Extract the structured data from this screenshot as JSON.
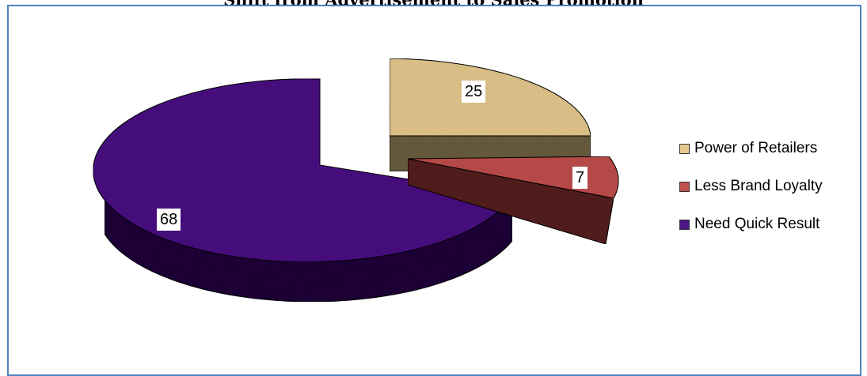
{
  "chart_data": {
    "type": "pie",
    "title": "Shift from Advertisement to Sales Promotion",
    "categories": [
      "Power of Retailers",
      "Less Brand Loyalty",
      "Need Quick Result"
    ],
    "values": [
      25,
      7,
      68
    ],
    "colors": [
      "#e6c98f",
      "#c0504d",
      "#4b1583"
    ],
    "legend_position": "right",
    "three_d": true
  }
}
